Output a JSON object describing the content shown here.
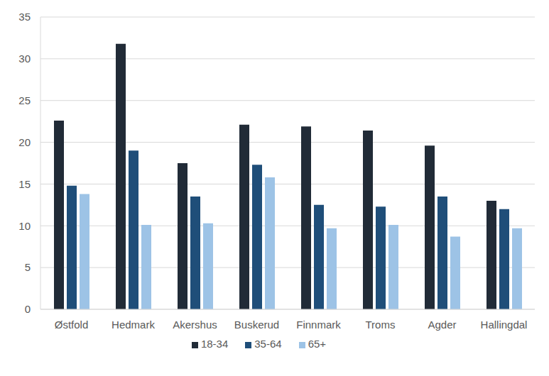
{
  "chart_data": {
    "type": "bar",
    "categories": [
      "Østfold",
      "Hedmark",
      "Akershus",
      "Buskerud",
      "Finnmark",
      "Troms",
      "Agder",
      "Hallingdal"
    ],
    "series": [
      {
        "name": "18-34",
        "color": "#212b37",
        "values": [
          22.6,
          31.8,
          17.5,
          22.1,
          21.9,
          21.4,
          19.6,
          13.0
        ]
      },
      {
        "name": "35-64",
        "color": "#1f4e79",
        "values": [
          14.8,
          19.0,
          13.5,
          17.3,
          12.5,
          12.3,
          13.5,
          12.0
        ]
      },
      {
        "name": "65+",
        "color": "#9dc3e6",
        "values": [
          13.8,
          10.1,
          10.3,
          15.8,
          9.7,
          10.1,
          8.7,
          9.7
        ]
      }
    ],
    "ylim": [
      0,
      35
    ],
    "yticks": [
      0,
      5,
      10,
      15,
      20,
      25,
      30,
      35
    ],
    "grid": true,
    "legend": "bottom"
  }
}
